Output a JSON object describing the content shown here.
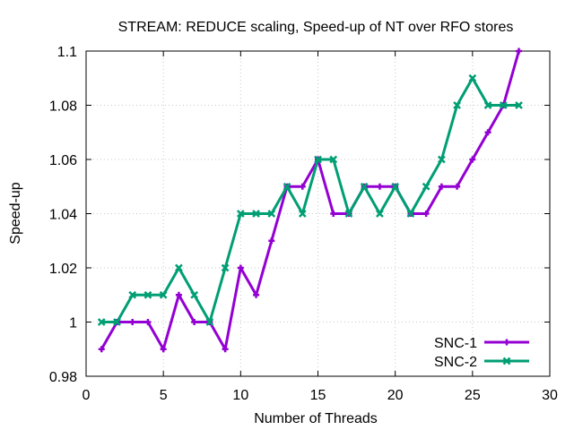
{
  "chart_data": {
    "type": "line",
    "title": "STREAM: REDUCE scaling, Speed-up of NT over RFO stores",
    "xlabel": "Number of Threads",
    "ylabel": "Speed-up",
    "xlim": [
      0,
      30
    ],
    "ylim": [
      0.98,
      1.1
    ],
    "xticks": [
      0,
      5,
      10,
      15,
      20,
      25,
      30
    ],
    "yticks": [
      0.98,
      1,
      1.02,
      1.04,
      1.06,
      1.08,
      1.1
    ],
    "xtick_labels": [
      "0",
      "5",
      "10",
      "15",
      "20",
      "25",
      "30"
    ],
    "ytick_labels": [
      "0.98",
      "1",
      "1.02",
      "1.04",
      "1.06",
      "1.08",
      "1.1"
    ],
    "grid": true,
    "legend_position": "bottom-right",
    "x": [
      1,
      2,
      3,
      4,
      5,
      6,
      7,
      8,
      9,
      10,
      11,
      12,
      13,
      14,
      15,
      16,
      17,
      18,
      19,
      20,
      21,
      22,
      23,
      24,
      25,
      26,
      27,
      28
    ],
    "series": [
      {
        "name": "SNC-1",
        "color": "#9400d3",
        "marker": "plus",
        "values": [
          0.99,
          1.0,
          1.0,
          1.0,
          0.99,
          1.01,
          1.0,
          1.0,
          0.99,
          1.02,
          1.01,
          1.03,
          1.05,
          1.05,
          1.06,
          1.04,
          1.04,
          1.05,
          1.05,
          1.05,
          1.04,
          1.04,
          1.05,
          1.05,
          1.06,
          1.07,
          1.08,
          1.1
        ]
      },
      {
        "name": "SNC-2",
        "color": "#009e73",
        "marker": "cross",
        "values": [
          1.0,
          1.0,
          1.01,
          1.01,
          1.01,
          1.02,
          1.01,
          1.0,
          1.02,
          1.04,
          1.04,
          1.04,
          1.05,
          1.04,
          1.06,
          1.06,
          1.04,
          1.05,
          1.04,
          1.05,
          1.04,
          1.05,
          1.06,
          1.08,
          1.09,
          1.08,
          1.08,
          1.08
        ]
      }
    ]
  }
}
